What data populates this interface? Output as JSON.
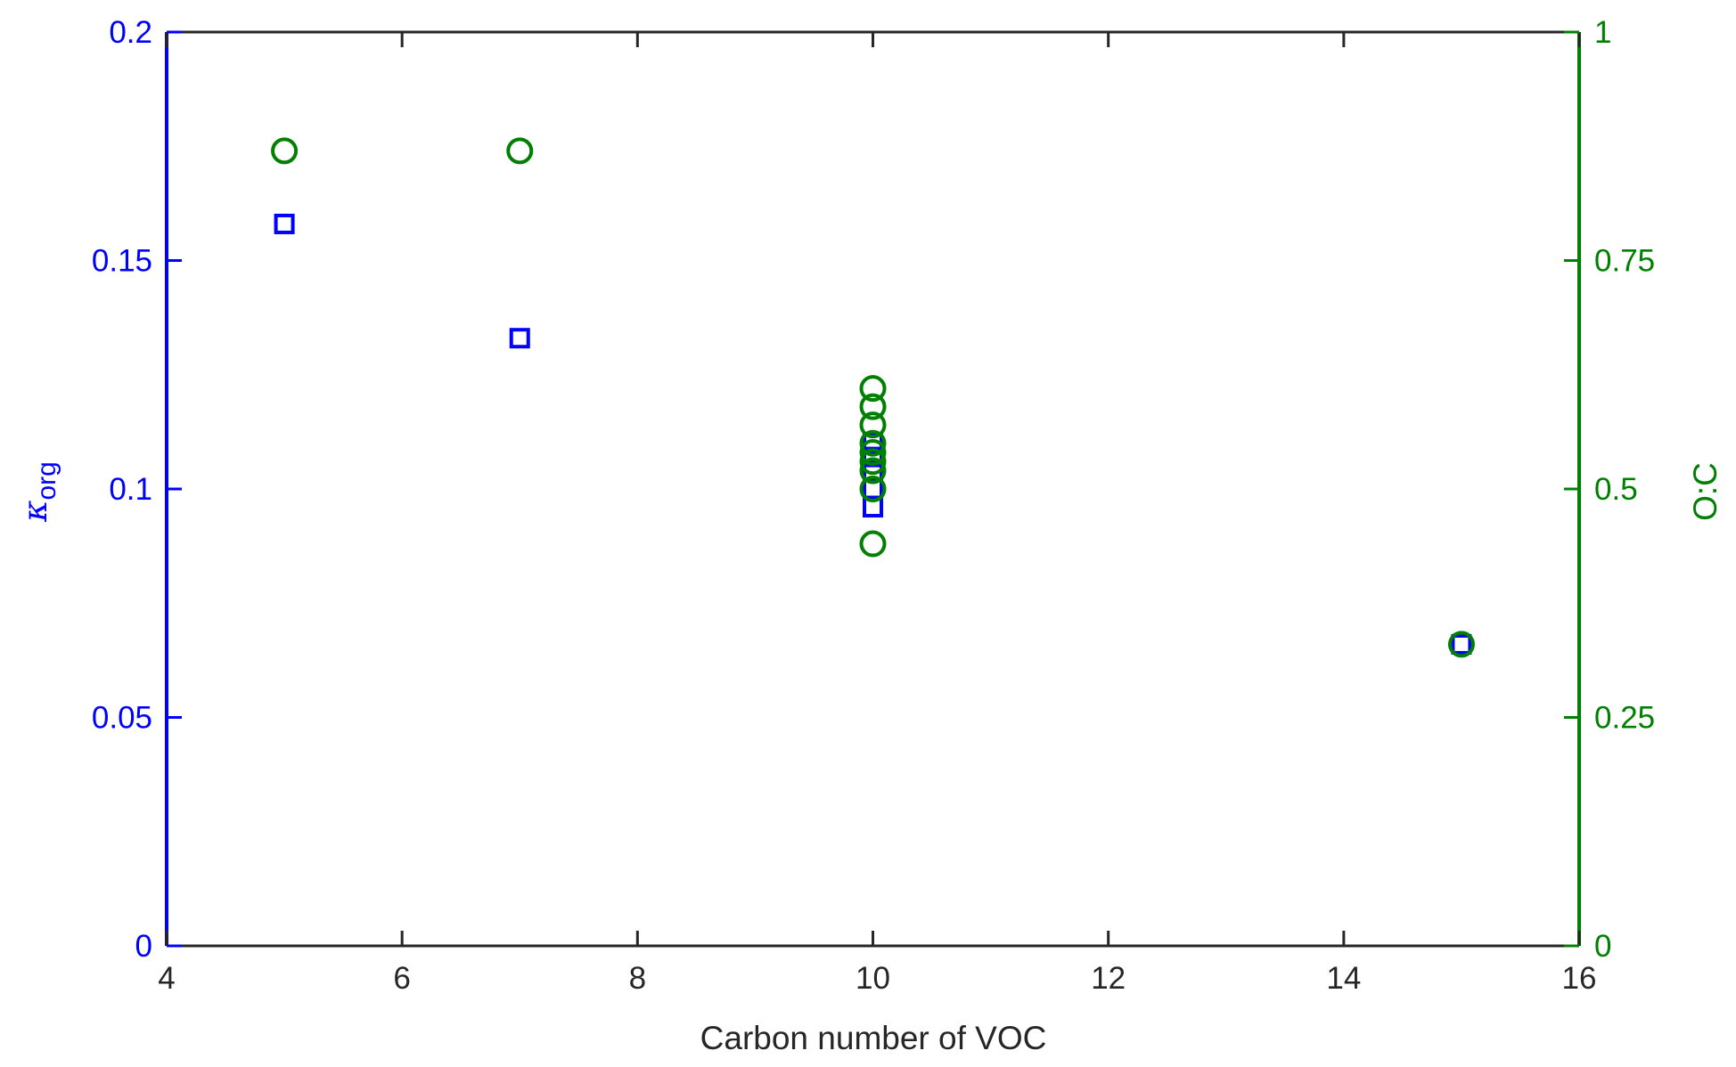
{
  "chart_data": {
    "type": "scatter",
    "title": "",
    "xlabel": "Carbon number of VOC",
    "ylabel_left": "κ",
    "ylabel_left_subscript": "org",
    "ylabel_right": "O:C",
    "xlim": [
      4,
      16
    ],
    "ylim_left": [
      0,
      0.2
    ],
    "ylim_right": [
      0,
      1
    ],
    "x_ticks": [
      "4",
      "6",
      "8",
      "10",
      "12",
      "14",
      "16"
    ],
    "y_left_ticks": [
      "0",
      "0.05",
      "0.1",
      "0.15",
      "0.2"
    ],
    "y_right_ticks": [
      "0",
      "0.25",
      "0.5",
      "0.75",
      "1"
    ],
    "grid": false,
    "colors": {
      "left_axis": "#0000ff",
      "right_axis": "#008000",
      "frame": "#262626"
    },
    "series": [
      {
        "axis": "left",
        "marker": "square",
        "color": "#0000ff",
        "points": [
          {
            "x": 5,
            "y": 0.158
          },
          {
            "x": 7,
            "y": 0.133
          },
          {
            "x": 10,
            "y": 0.096
          },
          {
            "x": 10,
            "y": 0.1
          },
          {
            "x": 10,
            "y": 0.104
          },
          {
            "x": 10,
            "y": 0.107
          },
          {
            "x": 10,
            "y": 0.11
          },
          {
            "x": 15,
            "y": 0.066
          }
        ]
      },
      {
        "axis": "right",
        "marker": "circle",
        "color": "#008000",
        "points": [
          {
            "x": 5,
            "y": 0.87
          },
          {
            "x": 7,
            "y": 0.87
          },
          {
            "x": 10,
            "y": 0.61
          },
          {
            "x": 10,
            "y": 0.59
          },
          {
            "x": 10,
            "y": 0.57
          },
          {
            "x": 10,
            "y": 0.55
          },
          {
            "x": 10,
            "y": 0.54
          },
          {
            "x": 10,
            "y": 0.53
          },
          {
            "x": 10,
            "y": 0.52
          },
          {
            "x": 10,
            "y": 0.5
          },
          {
            "x": 10,
            "y": 0.44
          },
          {
            "x": 15,
            "y": 0.33
          }
        ]
      }
    ]
  }
}
